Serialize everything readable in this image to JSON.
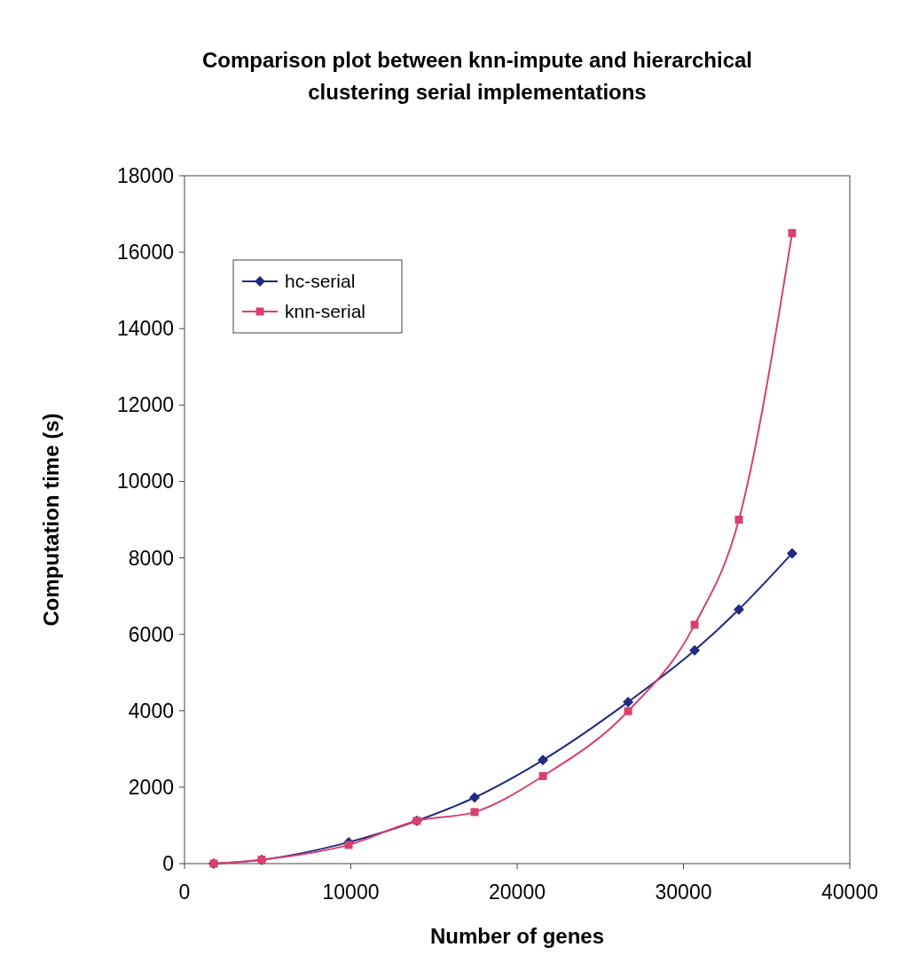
{
  "chart_data": {
    "type": "line",
    "title": "Comparison plot between knn-impute and hierarchical clustering serial implementations",
    "xlabel": "Number of genes",
    "ylabel": "Computation time (s)",
    "xlim": [
      0,
      40000
    ],
    "xticks": [
      0,
      10000,
      20000,
      30000,
      40000
    ],
    "ylim": [
      0,
      18000
    ],
    "yticks": [
      0,
      2000,
      4000,
      6000,
      8000,
      10000,
      12000,
      14000,
      16000,
      18000
    ],
    "x": [
      1760,
      4640,
      9870,
      13970,
      17440,
      21550,
      26670,
      30670,
      33330,
      36530
    ],
    "series": [
      {
        "name": "hc-serial",
        "color": "#1f2a80",
        "marker": "diamond",
        "values": [
          0,
          100,
          560,
          1120,
          1730,
          2710,
          4230,
          5580,
          6650,
          8120
        ]
      },
      {
        "name": "knn-serial",
        "color": "#d9406e",
        "marker": "square",
        "values": [
          0,
          100,
          490,
          1120,
          1350,
          2290,
          3990,
          6250,
          9000,
          16500
        ]
      }
    ],
    "grid": false,
    "legend": "top left"
  }
}
